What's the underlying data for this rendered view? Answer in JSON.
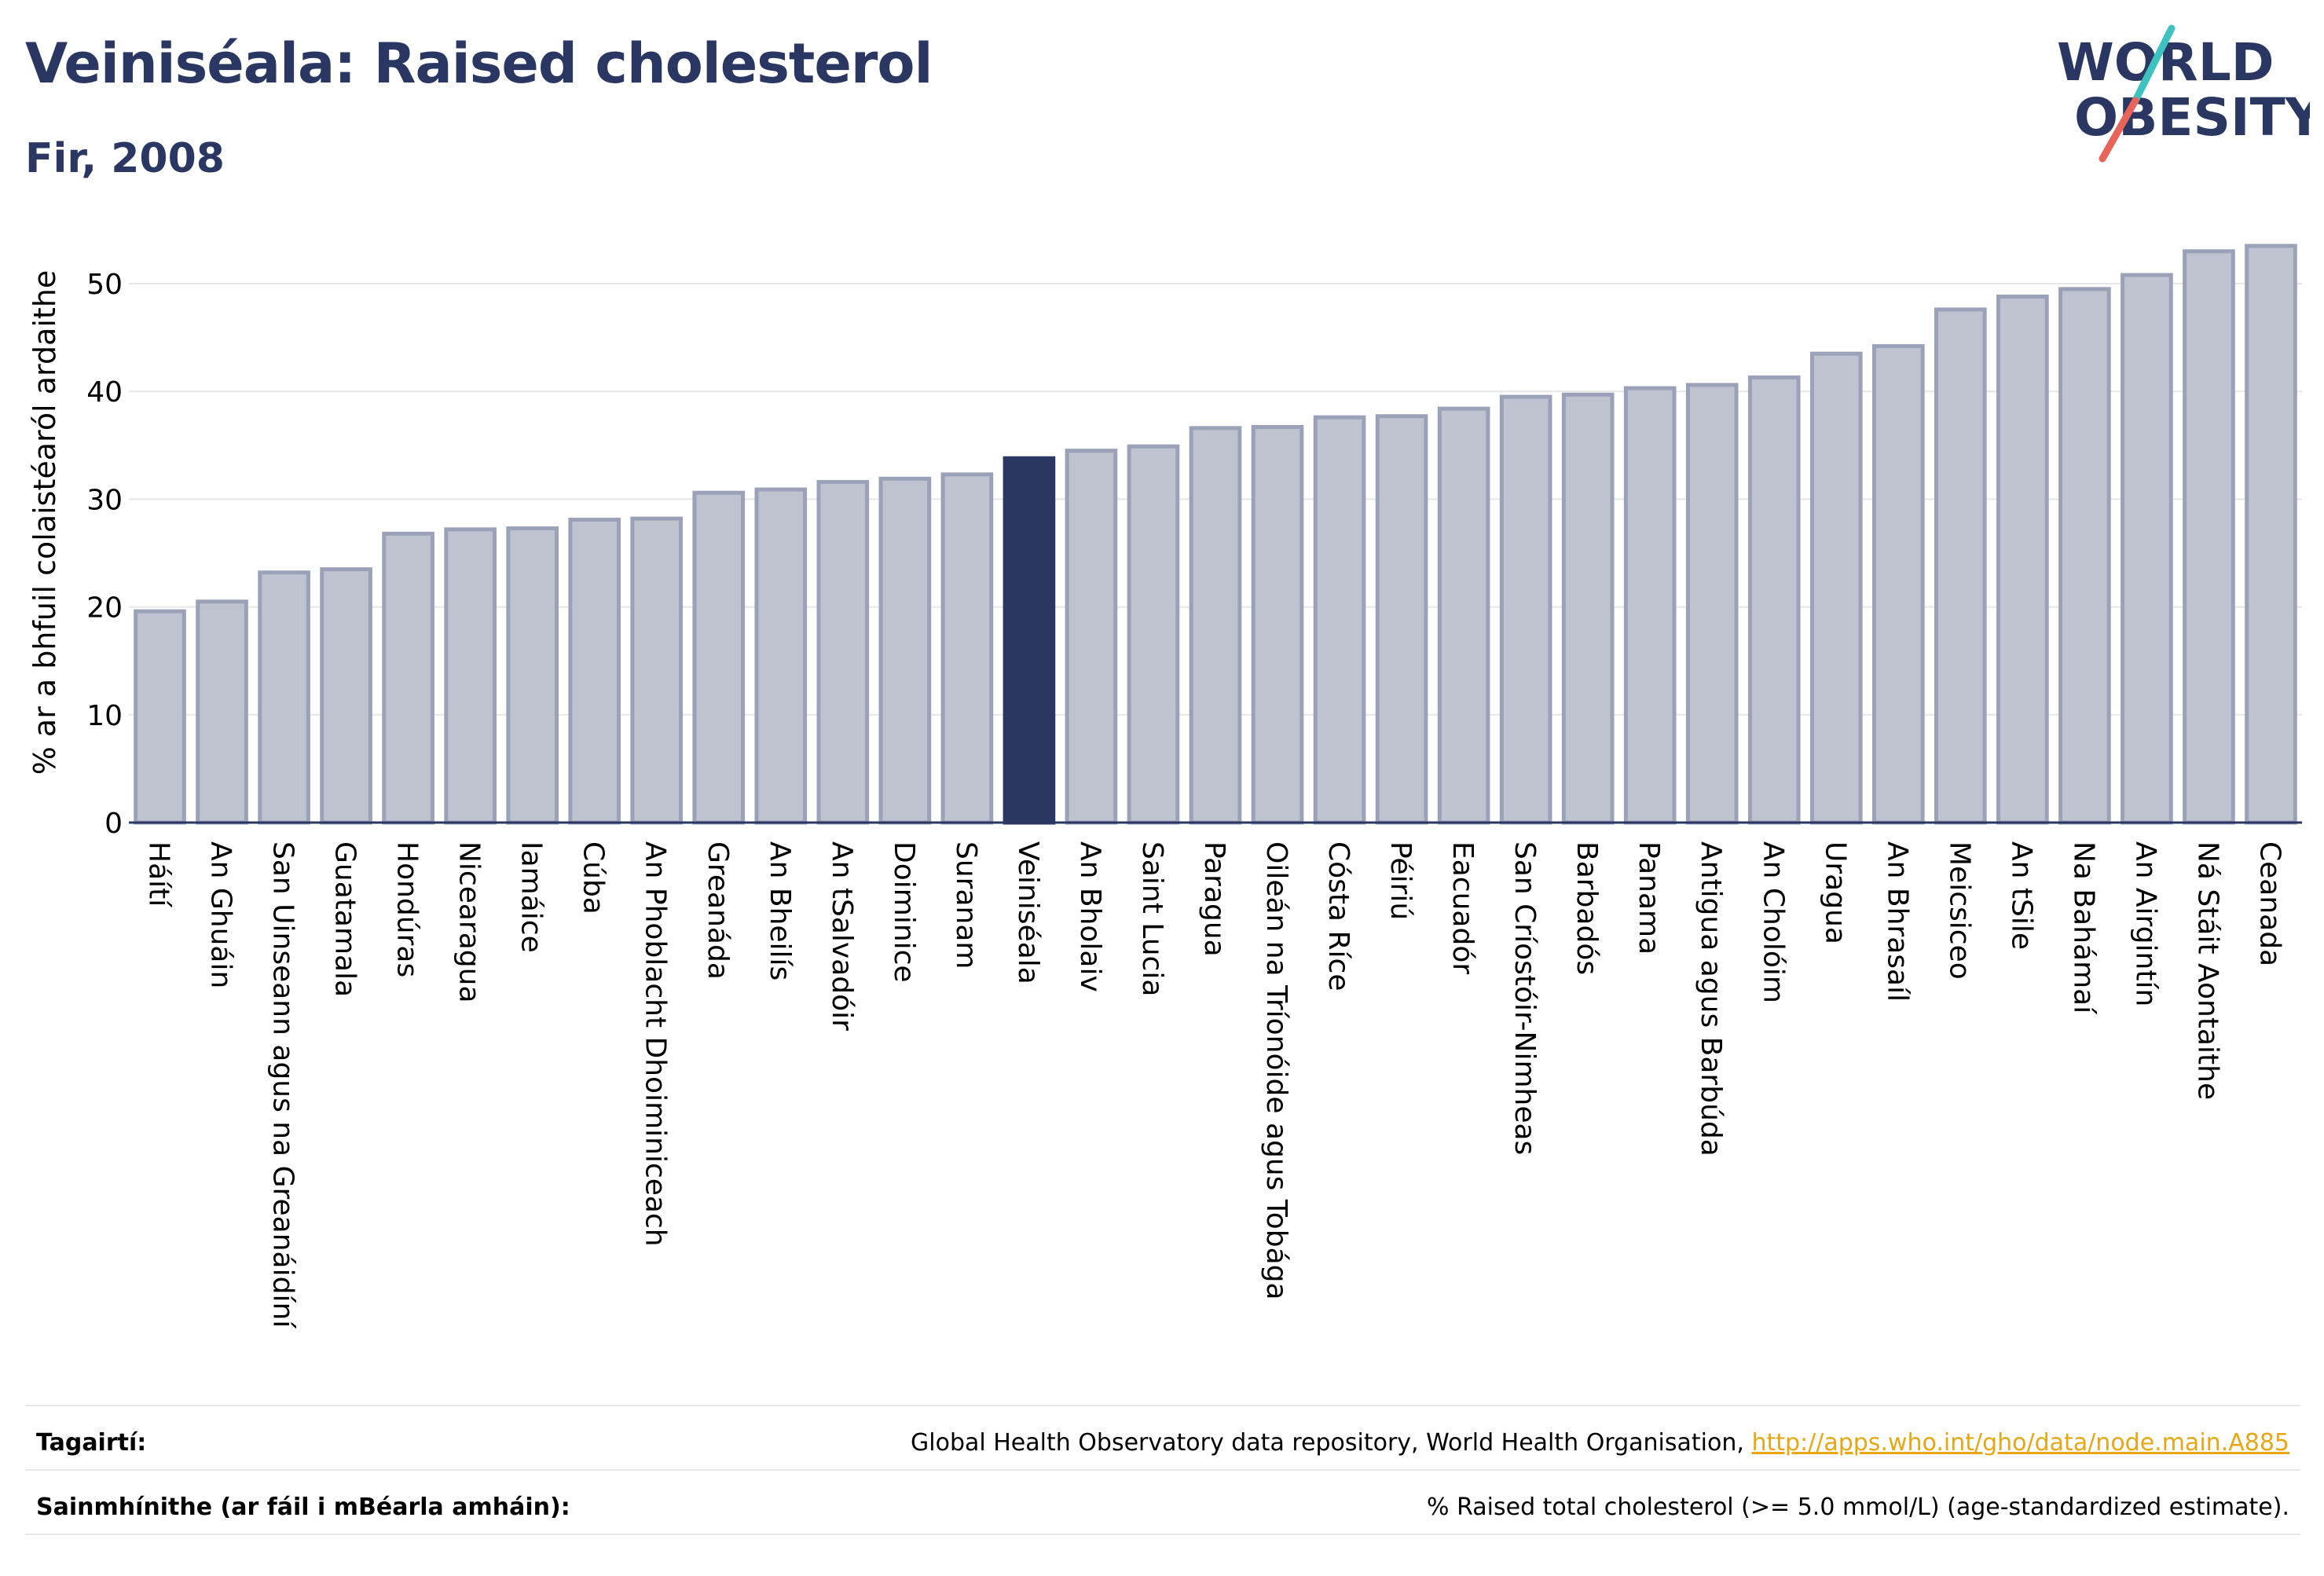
{
  "header": {
    "title": "Veiniséala: Raised cholesterol",
    "subtitle": "Fir, 2008"
  },
  "logo": {
    "line1": "WORLD",
    "line2": "OBESITY",
    "text_color": "#2a3763",
    "slash_top_color": "#3ec1c1",
    "slash_bottom_color": "#e8635a"
  },
  "colors": {
    "bar_default": "#bfc3d0",
    "bar_border": "#9aa1b8",
    "bar_highlight": "#2a3763",
    "grid": "#e6e6e6",
    "baseline": "#2a3763"
  },
  "chart_data": {
    "type": "bar",
    "title": "",
    "xlabel": "",
    "ylabel": "% ar a bhfuil colaistéaról ardaithe",
    "ylim": [
      0,
      56
    ],
    "yticks": [
      0,
      10,
      20,
      30,
      40,
      50
    ],
    "grid": true,
    "highlight": "Veiniséala",
    "categories": [
      "Háítí",
      "An Ghuáin",
      "San Uinseann agus na Greanáidíní",
      "Guatamala",
      "Hondúras",
      "Nicearagua",
      "Iamáice",
      "Cúba",
      "An Phoblacht Dhoiminiceach",
      "Greanáda",
      "An Bheilís",
      "An tSalvadóir",
      "Doiminice",
      "Suranam",
      "Veiniséala",
      "An Bholaiv",
      "Saint Lucia",
      "Paragua",
      "Oileán na Tríonóide agus Tobága",
      "Cósta Ríce",
      "Péiriú",
      "Eacuadór",
      "San Críostóir-Nimheas",
      "Barbadós",
      "Panama",
      "Antigua agus Barbúda",
      "An Cholóim",
      "Uragua",
      "An Bhrasaíl",
      "Meicsiceo",
      "An tSile",
      "Na Bahámaí",
      "An Airgintín",
      "Ná Stáit Aontaithe",
      "Ceanada"
    ],
    "values": [
      19.6,
      20.5,
      23.2,
      23.5,
      26.8,
      27.2,
      27.3,
      28.1,
      28.2,
      30.6,
      30.9,
      31.6,
      31.9,
      32.3,
      33.8,
      34.5,
      34.9,
      36.6,
      36.7,
      37.6,
      37.7,
      38.4,
      39.5,
      39.7,
      40.3,
      40.6,
      41.3,
      43.5,
      44.2,
      47.6,
      48.8,
      49.5,
      50.8,
      53.0,
      53.5
    ]
  },
  "footer": {
    "references_label": "Tagairtí:",
    "references_text": "Global Health Observatory data repository, World Health Organisation, ",
    "references_link": "http://apps.who.int/gho/data/node.main.A885",
    "definitions_label": "Sainmhínithe (ar fáil i mBéarla amháin):",
    "definitions_text": "% Raised total cholesterol (>= 5.0 mmol/L) (age-standardized estimate)."
  }
}
